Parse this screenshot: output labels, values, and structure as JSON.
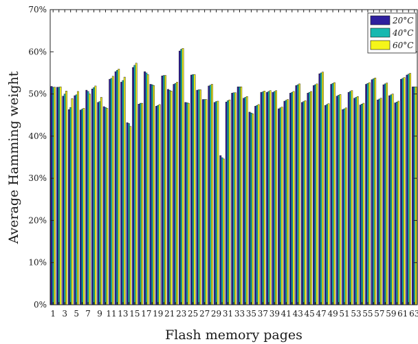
{
  "chart_data": {
    "type": "bar",
    "title": "",
    "xlabel": "Flash memory pages",
    "ylabel": "Average Hamming weight",
    "ylim": [
      0,
      70
    ],
    "y_ticks": [
      0,
      10,
      20,
      30,
      40,
      50,
      60,
      70
    ],
    "y_tick_labels": [
      "0%",
      "10%",
      "20%",
      "30%",
      "40%",
      "50%",
      "60%",
      "70%"
    ],
    "categories": [
      "1",
      "2",
      "3",
      "4",
      "5",
      "6",
      "7",
      "8",
      "9",
      "10",
      "11",
      "12",
      "13",
      "14",
      "15",
      "16",
      "17",
      "18",
      "19",
      "20",
      "21",
      "22",
      "23",
      "24",
      "25",
      "26",
      "27",
      "28",
      "29",
      "30",
      "31",
      "32",
      "33",
      "34",
      "35",
      "36",
      "37",
      "38",
      "39",
      "40",
      "41",
      "42",
      "43",
      "44",
      "45",
      "46",
      "47",
      "48",
      "49",
      "50",
      "51",
      "52",
      "53",
      "54",
      "55",
      "56",
      "57",
      "58",
      "59",
      "60",
      "61",
      "62",
      "63"
    ],
    "x_tick_labels": [
      "1",
      "3",
      "5",
      "7",
      "9",
      "11",
      "13",
      "15",
      "17",
      "19",
      "21",
      "23",
      "25",
      "27",
      "29",
      "31",
      "33",
      "35",
      "37",
      "39",
      "41",
      "43",
      "45",
      "47",
      "49",
      "51",
      "53",
      "55",
      "57",
      "59",
      "61",
      "63"
    ],
    "legend_position": "top-right",
    "grid": false,
    "series": [
      {
        "name": "20°C",
        "color": "#2e1f9e",
        "values": [
          51.8,
          51.6,
          49.5,
          46.3,
          49.6,
          46.2,
          50.9,
          51.2,
          48.0,
          47.0,
          53.5,
          55.3,
          52.8,
          43.2,
          56.3,
          47.6,
          55.3,
          52.3,
          47.1,
          54.3,
          51.1,
          52.3,
          60.2,
          48.0,
          54.5,
          50.9,
          48.7,
          51.9,
          48.0,
          35.4,
          48.1,
          50.2,
          51.7,
          49.0,
          45.7,
          47.1,
          50.4,
          50.4,
          50.4,
          46.5,
          48.3,
          50.2,
          52.0,
          48.0,
          50.2,
          52.0,
          54.8,
          47.3,
          52.3,
          49.5,
          46.3,
          50.4,
          49.0,
          47.4,
          52.3,
          53.4,
          48.6,
          52.2,
          49.6,
          47.9,
          53.5,
          54.5,
          51.7
        ]
      },
      {
        "name": "40°C",
        "color": "#16b8b0",
        "values": [
          51.6,
          51.6,
          50.0,
          46.8,
          49.8,
          46.4,
          50.6,
          51.5,
          48.2,
          46.8,
          53.7,
          55.6,
          53.2,
          43.0,
          56.8,
          47.8,
          55.0,
          52.2,
          47.3,
          54.4,
          50.9,
          52.5,
          60.6,
          47.9,
          54.6,
          51.0,
          48.7,
          52.1,
          48.2,
          34.9,
          48.4,
          50.3,
          51.7,
          49.2,
          45.5,
          47.3,
          50.5,
          50.6,
          50.6,
          46.7,
          48.5,
          50.4,
          52.2,
          48.2,
          50.4,
          52.2,
          55.0,
          47.5,
          52.5,
          49.7,
          46.5,
          50.6,
          49.2,
          47.6,
          52.5,
          53.6,
          48.8,
          52.4,
          49.8,
          48.1,
          53.7,
          54.7,
          51.7
        ]
      },
      {
        "name": "60°C",
        "color": "#f5f51a",
        "values": [
          51.6,
          51.7,
          50.7,
          48.9,
          50.6,
          46.6,
          50.0,
          51.9,
          49.2,
          46.6,
          54.2,
          55.9,
          54.0,
          42.3,
          57.3,
          47.8,
          54.6,
          52.0,
          47.5,
          54.4,
          50.7,
          52.8,
          60.8,
          47.8,
          54.6,
          51.0,
          48.7,
          52.3,
          48.3,
          34.6,
          48.6,
          50.3,
          51.7,
          49.4,
          45.3,
          47.5,
          50.7,
          50.8,
          50.8,
          46.9,
          48.7,
          50.6,
          52.4,
          48.4,
          50.6,
          52.4,
          55.2,
          47.7,
          52.7,
          49.9,
          46.7,
          50.8,
          49.4,
          47.8,
          52.7,
          53.8,
          49.0,
          52.6,
          50.0,
          48.3,
          53.9,
          54.9,
          51.7
        ]
      }
    ]
  }
}
